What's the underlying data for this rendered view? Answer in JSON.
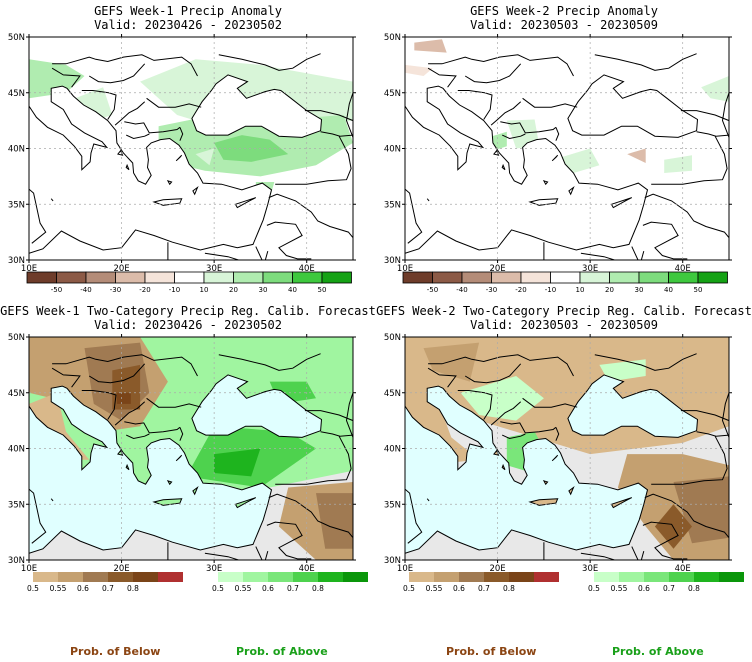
{
  "colors": {
    "map_outline": "#000000",
    "grid": "#aaaaaa",
    "sea": "#e0ffff",
    "land_nodata": "#e8e8e8",
    "below_label": "#8b4513",
    "above_label": "#1aa01a"
  },
  "axes": {
    "lat_labels": [
      "50N",
      "45N",
      "40N",
      "35N",
      "30N"
    ],
    "lon_labels": [
      "10E",
      "20E",
      "30E",
      "40E"
    ]
  },
  "panels": [
    {
      "title": "GEFS Week-1 Precip Anomaly",
      "valid": "Valid: 20230426 - 20230502",
      "type": "anomaly"
    },
    {
      "title": "GEFS Week-2 Precip Anomaly",
      "valid": "Valid: 20230503 - 20230509",
      "type": "anomaly"
    },
    {
      "title": "GEFS Week-1 Two-Category Precip Reg. Calib. Forecast",
      "valid": "Valid: 20230426 - 20230502",
      "type": "probability"
    },
    {
      "title": "GEFS Week-2 Two-Category Precip Reg. Calib. Forecast",
      "valid": "Valid: 20230503 - 20230509",
      "type": "probability"
    }
  ],
  "anomaly_colorbar": {
    "labels": [
      "-50",
      "-40",
      "-30",
      "-20",
      "-10",
      "10",
      "20",
      "30",
      "40",
      "50"
    ],
    "colors": [
      "#6e3c2a",
      "#8c5a46",
      "#b48c78",
      "#dcbcaa",
      "#f5e4da",
      "#ffffff",
      "#d8f5d8",
      "#b0ecb0",
      "#7ddc7d",
      "#3ec83e",
      "#15a215"
    ]
  },
  "prob_colorbar": {
    "below_labels": [
      "0.5",
      "0.55",
      "0.6",
      "0.7",
      "0.8"
    ],
    "below_colors": [
      "#d9b88a",
      "#c4a070",
      "#a07a52",
      "#8a5a2a",
      "#7a4418",
      "#b03030"
    ],
    "above_labels": [
      "0.5",
      "0.55",
      "0.6",
      "0.7",
      "0.8"
    ],
    "above_colors": [
      "#c8ffc8",
      "#a0f5a0",
      "#7ae67a",
      "#4ed24e",
      "#1eb41e",
      "#0a960a"
    ]
  },
  "legend": {
    "below": "Prob. of Below",
    "above": "Prob. of Above"
  }
}
